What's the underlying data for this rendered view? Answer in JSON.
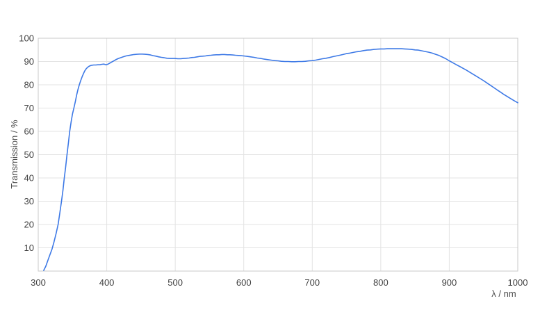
{
  "chart_data": {
    "type": "line",
    "title": "",
    "xlabel": "λ / nm",
    "ylabel": "Transmission / %",
    "xlim": [
      300,
      1000
    ],
    "ylim": [
      0,
      100
    ],
    "x_ticks": [
      300,
      400,
      500,
      600,
      700,
      800,
      900,
      1000
    ],
    "y_ticks": [
      10,
      20,
      30,
      40,
      50,
      60,
      70,
      80,
      90,
      100
    ],
    "grid": true,
    "legend": "none",
    "colors": {
      "line": "#3d79e6",
      "grid": "#e3e3e3",
      "frame": "#c9c9c9",
      "tick_label": "#3f3f3f",
      "axis_title": "#4d4d4d",
      "background": "#ffffff"
    },
    "series": [
      {
        "name": "Transmission",
        "points": [
          [
            308,
            0.3
          ],
          [
            311,
            2.0
          ],
          [
            314,
            4.5
          ],
          [
            317,
            7.0
          ],
          [
            320,
            9.3
          ],
          [
            323,
            12.5
          ],
          [
            326,
            16.0
          ],
          [
            329,
            20.0
          ],
          [
            331,
            24.0
          ],
          [
            334,
            30.0
          ],
          [
            336,
            34.5
          ],
          [
            338,
            40.0
          ],
          [
            340,
            44.5
          ],
          [
            342,
            50.0
          ],
          [
            344,
            55.0
          ],
          [
            346,
            60.0
          ],
          [
            348,
            64.0
          ],
          [
            350,
            67.5
          ],
          [
            352,
            70.0
          ],
          [
            354,
            72.5
          ],
          [
            356,
            75.5
          ],
          [
            358,
            78.0
          ],
          [
            360,
            80.0
          ],
          [
            362,
            81.8
          ],
          [
            364,
            83.4
          ],
          [
            366,
            84.8
          ],
          [
            368,
            86.0
          ],
          [
            370,
            86.9
          ],
          [
            372,
            87.5
          ],
          [
            374,
            87.9
          ],
          [
            376,
            88.2
          ],
          [
            378,
            88.4
          ],
          [
            381,
            88.5
          ],
          [
            384,
            88.5
          ],
          [
            387,
            88.6
          ],
          [
            390,
            88.6
          ],
          [
            393,
            88.8
          ],
          [
            396,
            88.9
          ],
          [
            399,
            88.6
          ],
          [
            402,
            88.9
          ],
          [
            405,
            89.4
          ],
          [
            408,
            89.9
          ],
          [
            411,
            90.4
          ],
          [
            414,
            90.9
          ],
          [
            417,
            91.3
          ],
          [
            420,
            91.6
          ],
          [
            424,
            92.0
          ],
          [
            428,
            92.4
          ],
          [
            432,
            92.6
          ],
          [
            436,
            92.8
          ],
          [
            440,
            93.0
          ],
          [
            444,
            93.1
          ],
          [
            448,
            93.2
          ],
          [
            452,
            93.2
          ],
          [
            456,
            93.1
          ],
          [
            460,
            93.0
          ],
          [
            464,
            92.8
          ],
          [
            468,
            92.5
          ],
          [
            472,
            92.3
          ],
          [
            476,
            92.0
          ],
          [
            480,
            91.8
          ],
          [
            484,
            91.6
          ],
          [
            488,
            91.4
          ],
          [
            492,
            91.3
          ],
          [
            496,
            91.3
          ],
          [
            500,
            91.3
          ],
          [
            504,
            91.2
          ],
          [
            508,
            91.2
          ],
          [
            512,
            91.3
          ],
          [
            516,
            91.4
          ],
          [
            520,
            91.5
          ],
          [
            524,
            91.7
          ],
          [
            528,
            91.8
          ],
          [
            532,
            92.0
          ],
          [
            536,
            92.2
          ],
          [
            540,
            92.3
          ],
          [
            544,
            92.4
          ],
          [
            548,
            92.6
          ],
          [
            552,
            92.7
          ],
          [
            556,
            92.8
          ],
          [
            560,
            92.9
          ],
          [
            564,
            92.9
          ],
          [
            568,
            93.0
          ],
          [
            572,
            93.0
          ],
          [
            576,
            92.9
          ],
          [
            580,
            92.9
          ],
          [
            584,
            92.8
          ],
          [
            588,
            92.7
          ],
          [
            592,
            92.6
          ],
          [
            596,
            92.5
          ],
          [
            600,
            92.4
          ],
          [
            605,
            92.2
          ],
          [
            610,
            92.0
          ],
          [
            615,
            91.8
          ],
          [
            620,
            91.5
          ],
          [
            625,
            91.3
          ],
          [
            630,
            91.0
          ],
          [
            635,
            90.8
          ],
          [
            640,
            90.6
          ],
          [
            645,
            90.4
          ],
          [
            650,
            90.3
          ],
          [
            655,
            90.1
          ],
          [
            660,
            90.0
          ],
          [
            665,
            90.0
          ],
          [
            670,
            89.9
          ],
          [
            675,
            89.9
          ],
          [
            680,
            90.0
          ],
          [
            685,
            90.0
          ],
          [
            690,
            90.1
          ],
          [
            695,
            90.3
          ],
          [
            700,
            90.4
          ],
          [
            705,
            90.6
          ],
          [
            710,
            90.9
          ],
          [
            715,
            91.2
          ],
          [
            720,
            91.4
          ],
          [
            725,
            91.7
          ],
          [
            730,
            92.1
          ],
          [
            735,
            92.4
          ],
          [
            740,
            92.7
          ],
          [
            745,
            93.0
          ],
          [
            750,
            93.4
          ],
          [
            755,
            93.6
          ],
          [
            760,
            93.9
          ],
          [
            765,
            94.2
          ],
          [
            770,
            94.4
          ],
          [
            775,
            94.7
          ],
          [
            780,
            94.9
          ],
          [
            785,
            95.0
          ],
          [
            790,
            95.2
          ],
          [
            795,
            95.3
          ],
          [
            800,
            95.4
          ],
          [
            805,
            95.4
          ],
          [
            810,
            95.5
          ],
          [
            815,
            95.5
          ],
          [
            820,
            95.5
          ],
          [
            825,
            95.5
          ],
          [
            830,
            95.5
          ],
          [
            835,
            95.4
          ],
          [
            840,
            95.3
          ],
          [
            845,
            95.2
          ],
          [
            850,
            95.0
          ],
          [
            855,
            94.9
          ],
          [
            860,
            94.6
          ],
          [
            865,
            94.3
          ],
          [
            870,
            94.0
          ],
          [
            875,
            93.6
          ],
          [
            880,
            93.1
          ],
          [
            885,
            92.6
          ],
          [
            890,
            91.9
          ],
          [
            895,
            91.2
          ],
          [
            900,
            90.3
          ],
          [
            905,
            89.5
          ],
          [
            910,
            88.7
          ],
          [
            915,
            87.9
          ],
          [
            920,
            87.1
          ],
          [
            925,
            86.3
          ],
          [
            930,
            85.4
          ],
          [
            935,
            84.5
          ],
          [
            940,
            83.6
          ],
          [
            945,
            82.7
          ],
          [
            950,
            81.8
          ],
          [
            955,
            80.8
          ],
          [
            960,
            79.8
          ],
          [
            965,
            78.8
          ],
          [
            970,
            77.8
          ],
          [
            975,
            76.8
          ],
          [
            980,
            75.8
          ],
          [
            985,
            74.9
          ],
          [
            990,
            74.0
          ],
          [
            995,
            73.1
          ],
          [
            1000,
            72.3
          ]
        ]
      }
    ]
  }
}
